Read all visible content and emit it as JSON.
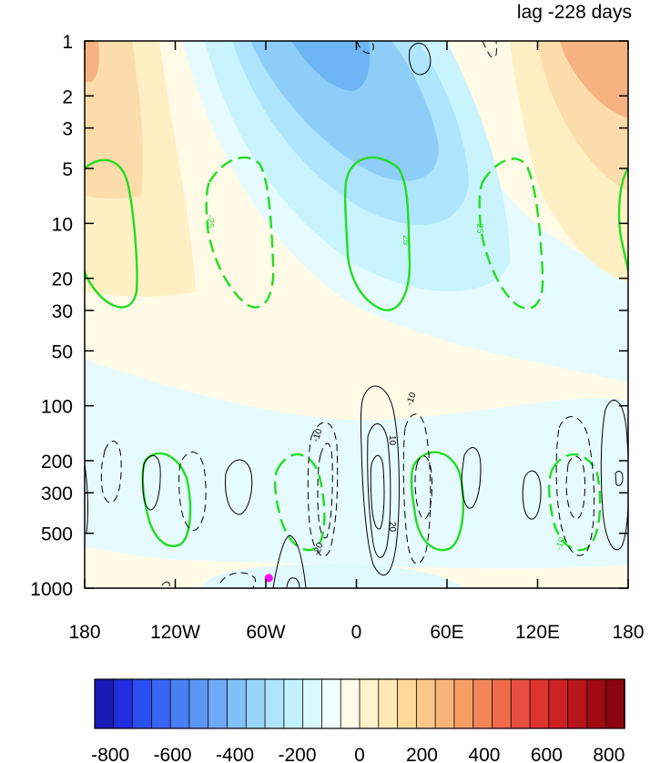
{
  "chart_data": {
    "type": "heatmap",
    "title": "lag -228 days",
    "xlabel": "",
    "ylabel": "",
    "x_axis": {
      "range": [
        -180,
        180
      ],
      "ticks": [
        {
          "value": -180,
          "label": "180"
        },
        {
          "value": -120,
          "label": "120W"
        },
        {
          "value": -60,
          "label": "60W"
        },
        {
          "value": 0,
          "label": "0"
        },
        {
          "value": 60,
          "label": "60E"
        },
        {
          "value": 120,
          "label": "120E"
        },
        {
          "value": 180,
          "label": "180"
        }
      ]
    },
    "y_axis": {
      "scale": "log",
      "reversed": true,
      "range": [
        1000,
        1
      ],
      "ticks": [
        1,
        2,
        3,
        5,
        10,
        20,
        30,
        50,
        100,
        200,
        300,
        500,
        1000
      ]
    },
    "colorbar": {
      "min": -850,
      "max": 850,
      "step": 50,
      "tick_values": [
        -800,
        -600,
        -400,
        -200,
        0,
        200,
        400,
        600,
        800
      ],
      "colors": [
        "#1a1ab4",
        "#1e2ee0",
        "#2a4ff0",
        "#3865f2",
        "#4a7ef3",
        "#5c96f5",
        "#6eaaf6",
        "#81c0f8",
        "#97d5fa",
        "#aee4fc",
        "#c3f0fd",
        "#daf8fe",
        "#f0feff",
        "#fffbe6",
        "#fff2cc",
        "#fee8b3",
        "#fcd99a",
        "#fac888",
        "#f8b478",
        "#f59e68",
        "#f28658",
        "#ee6a4a",
        "#e84e3e",
        "#de3430",
        "#cc2224",
        "#b8151a",
        "#a00a12",
        "#8c0410"
      ]
    },
    "shading_anomalies": [
      {
        "lon": -165,
        "p": 2,
        "value": 180
      },
      {
        "lon": 5,
        "p": 1.5,
        "value": -380
      },
      {
        "lon": 160,
        "p": 1.5,
        "value": 420
      },
      {
        "lon": -80,
        "p": 5,
        "value": 90
      },
      {
        "lon": 60,
        "p": 20,
        "value": -130
      },
      {
        "lon": 110,
        "p": 20,
        "value": 90
      },
      {
        "lon": -150,
        "p": 200,
        "value": -40
      },
      {
        "lon": -40,
        "p": 300,
        "value": 30
      },
      {
        "lon": 120,
        "p": 400,
        "value": -30
      },
      {
        "lon": -20,
        "p": 1000,
        "value": -60
      }
    ],
    "contour_labels": [
      "-25",
      "25",
      "-25",
      "-10",
      "10",
      "-10",
      "-20",
      "20",
      "-10"
    ],
    "marker": {
      "lon": -58,
      "p": 880,
      "color": "#ff00ff"
    }
  }
}
